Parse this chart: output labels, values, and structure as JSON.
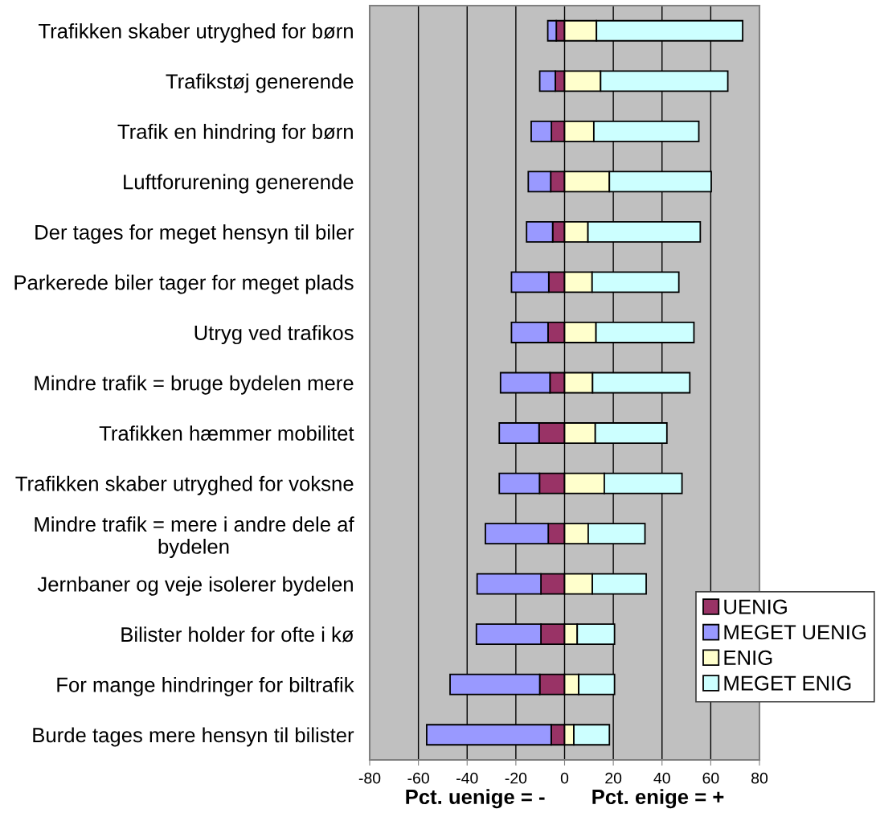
{
  "chart_data": {
    "type": "bar",
    "orientation": "horizontal",
    "stacked": true,
    "categories": [
      "Trafikken skaber utryghed for børn",
      "Trafikstøj generende",
      "Trafik en hindring for børn",
      "Luftforurening generende",
      "Der tages for meget hensyn til biler",
      "Parkerede biler tager for meget plads",
      "Utryg ved trafikos",
      "Mindre trafik = bruge bydelen mere",
      "Trafikken hæmmer mobilitet",
      "Trafikken skaber utryghed for voksne",
      "Mindre trafik = mere i andre dele af\nbydelen",
      "Jernbaner og veje isolerer bydelen",
      "Bilister holder for ofte i kø",
      "For mange hindringer for biltrafik",
      "Burde tages mere hensyn til bilister"
    ],
    "series": [
      {
        "name": "UENIG",
        "color": "#993366",
        "values": [
          -3.4,
          -3.8,
          -5.4,
          -5.7,
          -4.9,
          -6.5,
          -6.8,
          -6.0,
          -10.5,
          -10.3,
          -6.7,
          -9.7,
          -9.7,
          -10.2,
          -5.5
        ]
      },
      {
        "name": "MEGET UENIG",
        "color": "#9999ff",
        "values": [
          -3.5,
          -6.4,
          -8.3,
          -9.2,
          -10.7,
          -15.3,
          -15.0,
          -20.3,
          -16.3,
          -16.5,
          -25.8,
          -26.2,
          -26.5,
          -36.8,
          -51.1
        ]
      },
      {
        "name": "ENIG",
        "color": "#ffffcc",
        "values": [
          13.1,
          14.8,
          12.0,
          18.4,
          9.6,
          11.3,
          12.9,
          11.5,
          12.6,
          16.3,
          9.7,
          11.4,
          5.2,
          5.8,
          3.8
        ]
      },
      {
        "name": "MEGET ENIG",
        "color": "#ccffff",
        "values": [
          60.0,
          52.2,
          43.1,
          41.8,
          46.1,
          35.6,
          40.2,
          39.9,
          29.4,
          31.9,
          23.3,
          22.1,
          15.3,
          14.7,
          14.6
        ]
      }
    ],
    "xlabel": "Pct. uenige = -        Pct. enige = +",
    "xlim": [
      -80,
      80
    ],
    "xticks": [
      -80,
      -60,
      -40,
      -20,
      0,
      20,
      40,
      60,
      80
    ],
    "grid": "x",
    "legend": "bottom right"
  }
}
